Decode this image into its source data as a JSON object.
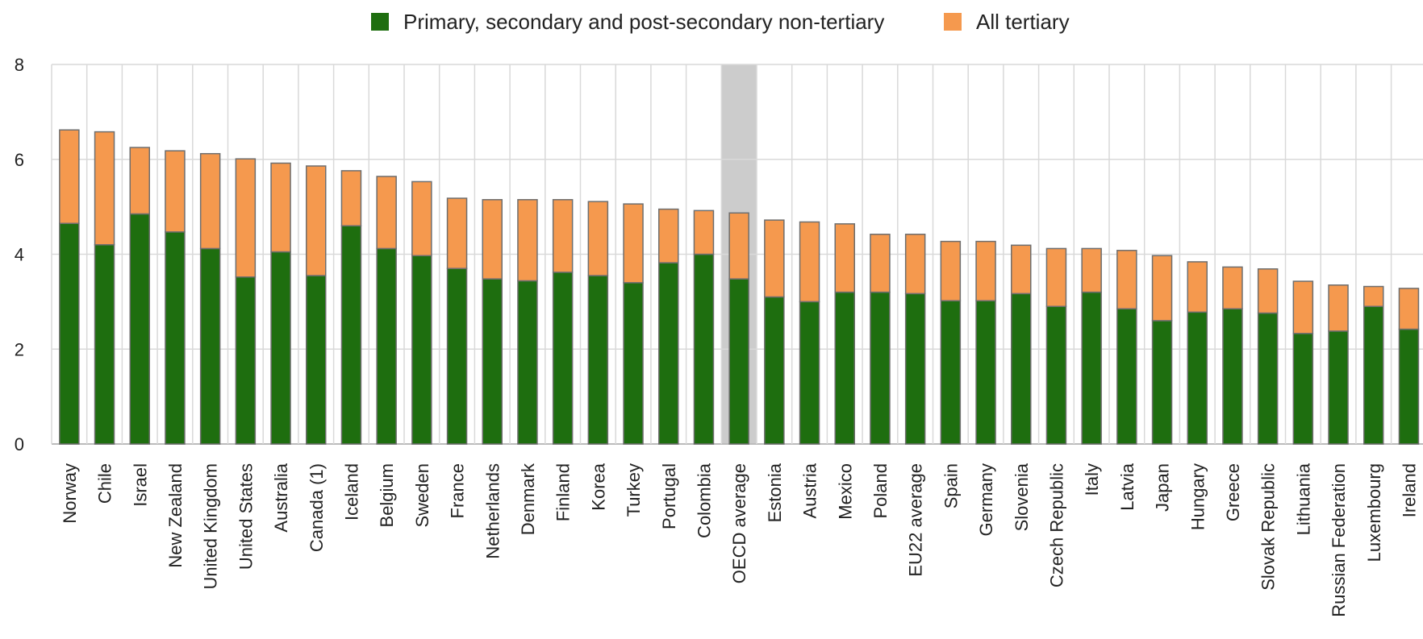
{
  "chart_data": {
    "type": "bar",
    "stacked": true,
    "categories": [
      "Norway",
      "Chile",
      "Israel",
      "New Zealand",
      "United Kingdom",
      "United States",
      "Australia",
      "Canada (1)",
      "Iceland",
      "Belgium",
      "Sweden",
      "France",
      "Netherlands",
      "Denmark",
      "Finland",
      "Korea",
      "Turkey",
      "Portugal",
      "Colombia",
      "OECD average",
      "Estonia",
      "Austria",
      "Mexico",
      "Poland",
      "EU22 average",
      "Spain",
      "Germany",
      "Slovenia",
      "Czech Republic",
      "Italy",
      "Latvia",
      "Japan",
      "Hungary",
      "Greece",
      "Slovak Republic",
      "Lithuania",
      "Russian Federation",
      "Luxembourg",
      "Ireland"
    ],
    "highlight_category": "OECD average",
    "series": [
      {
        "name": "Primary, secondary and post-secondary non-tertiary",
        "color": "#1e6e0f",
        "values": [
          4.65,
          4.2,
          4.85,
          4.47,
          4.12,
          3.52,
          4.05,
          3.55,
          4.6,
          4.12,
          3.97,
          3.7,
          3.48,
          3.44,
          3.62,
          3.55,
          3.4,
          3.82,
          4.0,
          3.48,
          3.1,
          3.0,
          3.2,
          3.2,
          3.17,
          3.02,
          3.02,
          3.17,
          2.9,
          3.2,
          2.85,
          2.6,
          2.78,
          2.85,
          2.76,
          2.33,
          2.38,
          2.9,
          2.42
        ]
      },
      {
        "name": "All tertiary",
        "color": "#f5994e",
        "values": [
          1.97,
          2.38,
          1.4,
          1.71,
          2.0,
          2.49,
          1.87,
          2.31,
          1.16,
          1.52,
          1.56,
          1.48,
          1.67,
          1.71,
          1.53,
          1.56,
          1.66,
          1.13,
          0.92,
          1.39,
          1.62,
          1.68,
          1.44,
          1.22,
          1.25,
          1.25,
          1.25,
          1.02,
          1.22,
          0.92,
          1.23,
          1.37,
          1.06,
          0.88,
          0.93,
          1.1,
          0.97,
          0.42,
          0.86
        ]
      }
    ],
    "ylim": [
      0,
      8
    ],
    "yticks": [
      "0",
      "2",
      "4",
      "6",
      "8"
    ],
    "grid": true,
    "legend_position": "top",
    "title": "",
    "xlabel": "",
    "ylabel": ""
  }
}
